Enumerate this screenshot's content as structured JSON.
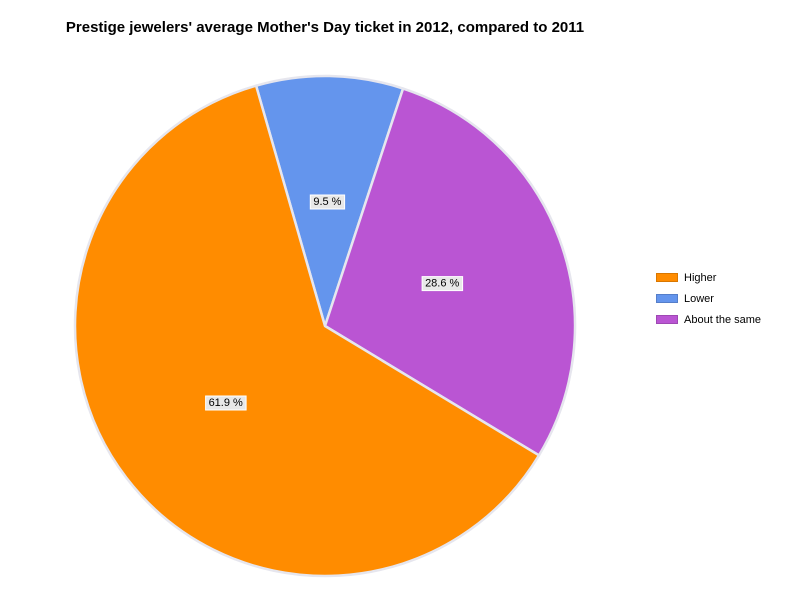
{
  "chart_data": {
    "type": "pie",
    "title": "Prestige jewelers' average Mother's Day ticket in 2012, compared to 2011",
    "slices": [
      {
        "label": "Lower",
        "value": 9.5,
        "display": "9.5 %",
        "color": "#6495ED"
      },
      {
        "label": "About the same",
        "value": 28.6,
        "display": "28.6 %",
        "color": "#BA55D3"
      },
      {
        "label": "Higher",
        "value": 61.9,
        "display": "61.9 %",
        "color": "#FF8C00"
      }
    ],
    "legend": {
      "placement": "right",
      "entries": [
        {
          "label": "Higher",
          "color": "#FF8C00"
        },
        {
          "label": "Lower",
          "color": "#6495ED"
        },
        {
          "label": "About the same",
          "color": "#BA55D3"
        }
      ]
    }
  }
}
